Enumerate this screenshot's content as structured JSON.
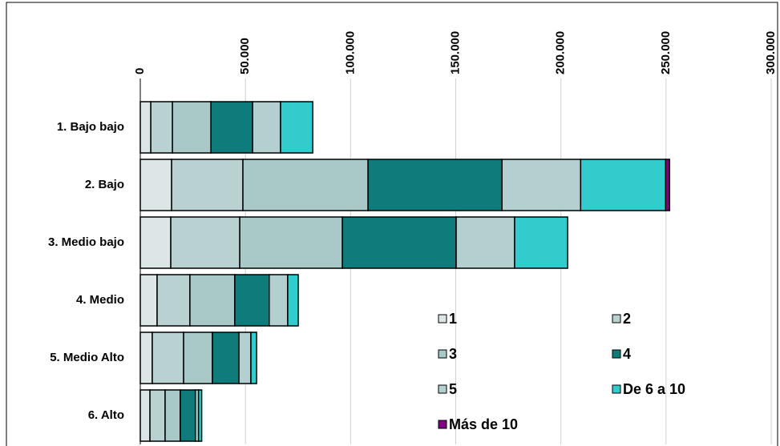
{
  "chart_data": {
    "type": "stacked_barh",
    "categories": [
      "1. Bajo bajo",
      "2. Bajo",
      "3. Medio bajo",
      "4. Medio",
      "5. Medio Alto",
      "6. Alto"
    ],
    "series": [
      {
        "name": "1",
        "color": "#dce6e6",
        "values": [
          5000,
          14900,
          14500,
          8000,
          5700,
          4600
        ]
      },
      {
        "name": "2",
        "color": "#b9d1d1",
        "values": [
          10300,
          33900,
          32800,
          15600,
          14900,
          7200
        ]
      },
      {
        "name": "3",
        "color": "#a9c9c9",
        "values": [
          18300,
          59500,
          48800,
          21300,
          13700,
          7200
        ]
      },
      {
        "name": "4",
        "color": "#0f7b7b",
        "values": [
          19800,
          63700,
          54100,
          16400,
          12600,
          7200
        ]
      },
      {
        "name": "5",
        "color": "#b3cfcf",
        "values": [
          13300,
          37400,
          27800,
          8800,
          5700,
          1500
        ]
      },
      {
        "name": "De 6 a 10",
        "color": "#33cccc",
        "values": [
          15300,
          40400,
          25200,
          5000,
          2700,
          1500
        ]
      },
      {
        "name": "Más de 10",
        "color": "#800080",
        "values": [
          0,
          1900,
          0,
          0,
          0,
          0
        ]
      }
    ],
    "xlim": [
      0,
      300000
    ],
    "xticks": [
      0,
      {
        "value": 50000,
        "label": "50.000"
      },
      {
        "value": 100000,
        "label": "100.000"
      },
      {
        "value": 150000,
        "label": "150.000"
      },
      {
        "value": 200000,
        "label": "200.000"
      },
      {
        "value": 250000,
        "label": "250.000"
      },
      {
        "value": 300000,
        "label": "300.000"
      }
    ],
    "grid": true,
    "legend": "lower right"
  }
}
